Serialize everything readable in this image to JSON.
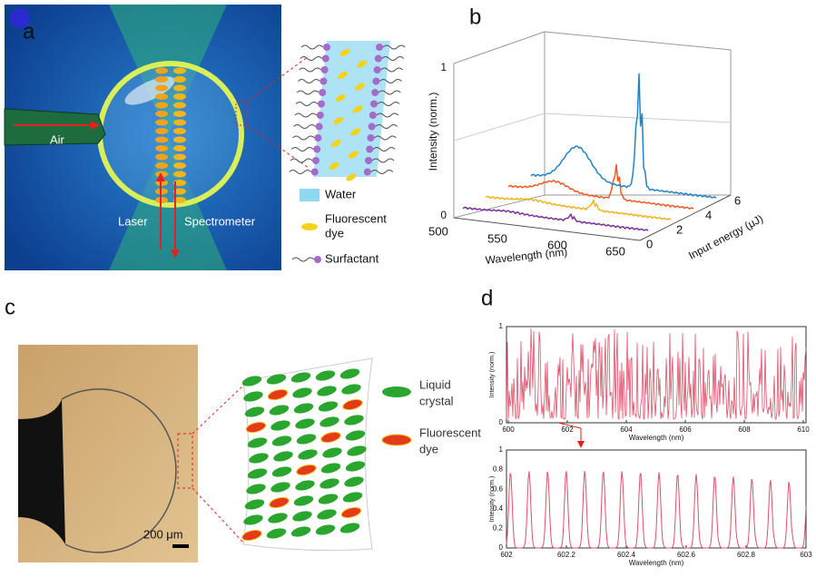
{
  "panels": [
    {
      "label": "a",
      "air": "Air",
      "laser": "Laser",
      "spectrometer": "Spectrometer",
      "legend": [
        {
          "lines": [
            "Water"
          ]
        },
        {
          "lines": [
            "Fluorescent",
            "dye"
          ]
        },
        {
          "lines": [
            "Surfactant"
          ]
        }
      ]
    },
    {
      "label": "b",
      "ylabel": "Intensity (norm.)",
      "yticks": [
        0,
        1
      ],
      "xlabel": "Wavelength (nm)",
      "xticks": [
        500,
        550,
        600,
        650
      ],
      "zlabel": "Input energy (μJ)",
      "zticks": [
        0,
        2,
        4,
        6
      ]
    },
    {
      "label": "c",
      "scale_bar": "200 μm",
      "legend": [
        {
          "lines": [
            "Liquid",
            "crystal"
          ]
        },
        {
          "lines": [
            "Fluorescent",
            "dye"
          ]
        }
      ]
    },
    {
      "label": "d",
      "top": {
        "xlabel": "Wavelength (nm)",
        "ylabel": "Intensity (norm.)",
        "xticks": [
          600,
          602,
          604,
          606,
          608,
          610
        ],
        "yticks": [
          0,
          1
        ]
      },
      "bottom": {
        "xlabel": "Wavelength (nm)",
        "ylabel": "Intensity (norm.)",
        "xticks": [
          602,
          602.2,
          602.4,
          602.6,
          602.8,
          603
        ],
        "yticks": [
          0,
          0.2,
          0.4,
          0.6,
          0.8,
          1
        ]
      }
    }
  ]
}
